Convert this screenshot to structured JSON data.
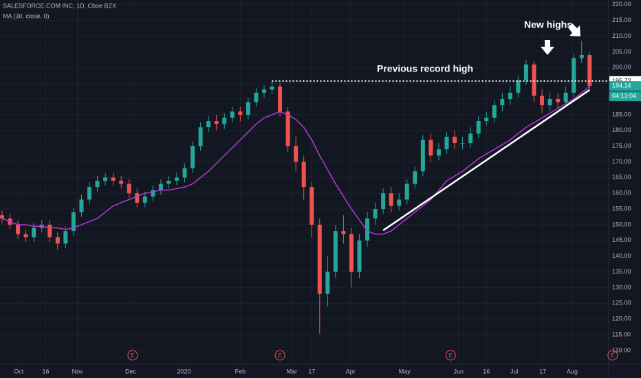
{
  "chart_data": {
    "type": "candlestick",
    "title": "SALESFORCE.COM INC, 1D, Cboe BZX",
    "indicator": "MA (30, close, 0)",
    "annotations": [
      "Previous record high",
      "New highs"
    ],
    "up_color": "#26a69a",
    "down_color": "#ef5350",
    "ma_color": "#b53ad6",
    "open": [
      153,
      152,
      150,
      147,
      146,
      149,
      150,
      146,
      144,
      148,
      154,
      158,
      162,
      164,
      165,
      164,
      163,
      160,
      157,
      159,
      161,
      163,
      164,
      165,
      168,
      175,
      181,
      183,
      182,
      184,
      186,
      185,
      189,
      192,
      193,
      194,
      186,
      175,
      170,
      162,
      150,
      128,
      135,
      148,
      147,
      135,
      145,
      152,
      155,
      160,
      156,
      158,
      163,
      167,
      177,
      172,
      174,
      178,
      176,
      176,
      179,
      183,
      184,
      188,
      190,
      192,
      196,
      201,
      191,
      188,
      190,
      189,
      192,
      203,
      204
    ],
    "high": [
      154.5,
      153.5,
      151.5,
      148.5,
      150.5,
      151.5,
      151.5,
      147.5,
      149.5,
      155.5,
      159.5,
      163.5,
      165.5,
      166.5,
      166.5,
      165.5,
      164.5,
      161.5,
      160.5,
      162.5,
      164.5,
      165.5,
      166.5,
      169.5,
      176.5,
      182.5,
      184.5,
      185,
      185.5,
      187.5,
      187.5,
      190.5,
      193.5,
      194.5,
      195.72,
      195,
      187.5,
      178,
      172,
      163.5,
      152,
      140,
      150,
      153,
      149,
      147,
      154,
      157,
      161.5,
      162,
      160,
      164.5,
      168.5,
      178.5,
      179,
      176,
      179.5,
      180,
      178,
      181,
      184.5,
      186,
      189.5,
      192,
      194,
      197.5,
      202.5,
      202,
      193,
      192,
      192,
      194,
      204.5,
      208.5,
      205
    ],
    "low": [
      150.5,
      148.5,
      145.5,
      144.5,
      144.5,
      147.5,
      144.5,
      142,
      142.5,
      146.5,
      152.5,
      156.5,
      160.5,
      162.5,
      162.5,
      161.5,
      158.5,
      155.5,
      155.5,
      157.5,
      159.5,
      161.5,
      162.5,
      163.5,
      166.5,
      173.5,
      179.5,
      180,
      180.5,
      182.5,
      183,
      183.5,
      187.5,
      190.5,
      191.5,
      184.5,
      173,
      167,
      158,
      146,
      115.3,
      124,
      133,
      144,
      130,
      133,
      143,
      150,
      153.5,
      154,
      154.5,
      156.5,
      161.5,
      165.5,
      170,
      170.5,
      172.5,
      174,
      174,
      174.5,
      177.5,
      181.5,
      182.5,
      186,
      188,
      190.5,
      194.5,
      189,
      185.5,
      186,
      187,
      187.5,
      190.5,
      201.5,
      193
    ],
    "close": [
      152,
      150,
      147,
      146,
      149,
      150,
      146,
      144,
      148,
      154,
      158,
      162,
      164,
      165,
      164,
      163,
      160,
      157,
      159,
      161,
      163,
      164,
      165,
      168,
      175,
      181,
      183,
      182,
      184,
      186,
      185,
      189,
      192,
      193,
      194,
      186,
      175,
      170,
      162,
      150,
      128,
      135,
      148,
      147,
      135,
      145,
      152,
      155,
      160,
      156,
      158,
      163,
      167,
      177,
      172,
      174,
      178,
      176,
      176,
      179,
      183,
      184,
      188,
      190,
      192,
      196,
      201,
      191,
      188,
      190,
      189,
      192,
      203,
      204,
      194.14
    ],
    "ma": [
      152,
      151,
      150,
      150,
      149.5,
      149.5,
      149,
      149,
      148.5,
      149,
      150,
      151,
      152,
      154,
      156,
      157,
      158,
      159,
      160,
      160.5,
      161,
      161,
      161.5,
      162,
      163,
      165,
      167,
      169.5,
      172,
      174.5,
      177,
      179.5,
      182,
      184,
      185,
      186,
      185,
      183.5,
      181,
      177,
      172,
      167.5,
      163,
      159,
      155,
      151.5,
      148,
      147,
      147,
      148,
      150,
      152,
      154,
      156,
      158,
      161,
      164,
      165.5,
      167,
      169,
      171,
      172.5,
      174,
      175.5,
      177,
      179,
      181,
      182.5,
      184,
      185.5,
      187,
      188.5,
      190,
      192,
      194
    ],
    "record_high": 195.72,
    "record_high_start": 34,
    "trendline": {
      "x": [
        48,
        74
      ],
      "y": [
        148.2,
        192.9
      ]
    },
    "countdown": "04:13:04",
    "earnings": {
      "label": "E",
      "x": [
        16.45,
        35,
        56.5,
        76.9
      ]
    },
    "xlim": [
      -0.26,
      76.4
    ],
    "xticks": [
      {
        "value": 2.1,
        "label": "Oct"
      },
      {
        "value": 5.5,
        "label": "16"
      },
      {
        "value": 9.5,
        "label": "Nov"
      },
      {
        "value": 16.2,
        "label": "Dec"
      },
      {
        "value": 22.9,
        "label": "2020"
      },
      {
        "value": 30,
        "label": "Feb"
      },
      {
        "value": 36.5,
        "label": "Mar"
      },
      {
        "value": 39,
        "label": "17"
      },
      {
        "value": 43.9,
        "label": "Apr"
      },
      {
        "value": 50.7,
        "label": "May"
      },
      {
        "value": 57.5,
        "label": "Jun"
      },
      {
        "value": 61,
        "label": "16"
      },
      {
        "value": 64.5,
        "label": "Jul"
      },
      {
        "value": 68.1,
        "label": "17"
      },
      {
        "value": 71.8,
        "label": "Aug"
      }
    ],
    "ylim": [
      105.6,
      221.5
    ],
    "yticks": [
      {
        "value": 110,
        "label": "110.00"
      },
      {
        "value": 115,
        "label": "115.00"
      },
      {
        "value": 120,
        "label": "120.00"
      },
      {
        "value": 125,
        "label": "125.00"
      },
      {
        "value": 130,
        "label": "130.00"
      },
      {
        "value": 135,
        "label": "135.00"
      },
      {
        "value": 140,
        "label": "140.00"
      },
      {
        "value": 145,
        "label": "145.00"
      },
      {
        "value": 150,
        "label": "150.00"
      },
      {
        "value": 155,
        "label": "155.00"
      },
      {
        "value": 160,
        "label": "160.00"
      },
      {
        "value": 165,
        "label": "165.00"
      },
      {
        "value": 170,
        "label": "170.00"
      },
      {
        "value": 175,
        "label": "175.00"
      },
      {
        "value": 180,
        "label": "180.00"
      },
      {
        "value": 185,
        "label": "185.00"
      },
      {
        "value": 190,
        "label": "190.00"
      },
      {
        "value": 195,
        "label": "195.00"
      },
      {
        "value": 200,
        "label": "200.00"
      },
      {
        "value": 205,
        "label": "205.00"
      },
      {
        "value": 210,
        "label": "210.00"
      },
      {
        "value": 215,
        "label": "215.00"
      },
      {
        "value": 220,
        "label": "220.00"
      }
    ],
    "grid": true
  }
}
